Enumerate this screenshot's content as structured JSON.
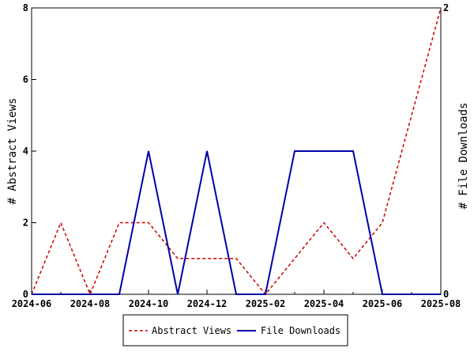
{
  "chart_data": {
    "type": "line",
    "title": "",
    "xlabel": "",
    "ylabel_left": "# Abstract Views",
    "ylabel_right": "# File Downloads",
    "x": [
      "2024-06",
      "2024-07",
      "2024-08",
      "2024-09",
      "2024-10",
      "2024-11",
      "2024-12",
      "2025-01",
      "2025-02",
      "2025-03",
      "2025-04",
      "2025-05",
      "2025-06",
      "2025-07",
      "2025-08"
    ],
    "x_tick_labels": [
      "2024-06",
      "2024-08",
      "2024-10",
      "2024-12",
      "2025-02",
      "2025-04",
      "2025-06",
      "2025-08"
    ],
    "ylim_left": [
      0,
      8
    ],
    "yticks_left": [
      "0",
      "2",
      "4",
      "6",
      "8"
    ],
    "ylim_right": [
      0,
      2
    ],
    "yticks_right": [
      "0",
      "2"
    ],
    "grid": false,
    "legend_position": "bottom",
    "series": [
      {
        "name": "Abstract Views",
        "axis": "left",
        "color": "#cc0000",
        "style": "dashed",
        "values": [
          0,
          2,
          0,
          2,
          2,
          1,
          1,
          1,
          0,
          1,
          2,
          1,
          2,
          5,
          8
        ]
      },
      {
        "name": "File Downloads",
        "axis": "right",
        "color": "#0000aa",
        "style": "solid",
        "values": [
          0,
          0,
          0,
          0,
          1,
          0,
          1,
          0,
          0,
          1,
          1,
          1,
          0,
          0,
          0
        ]
      }
    ]
  }
}
